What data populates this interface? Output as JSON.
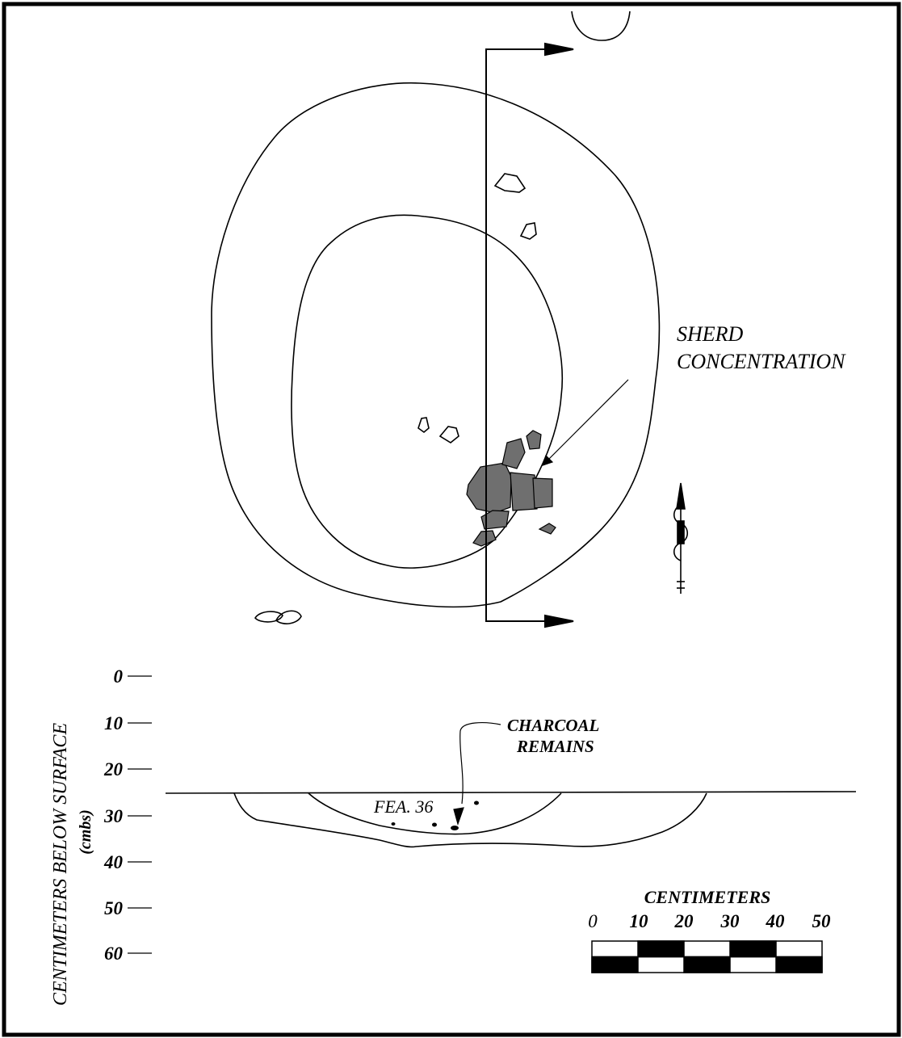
{
  "plan_view": {
    "sherd_label_line1": "SHERD",
    "sherd_label_line2": "CONCENTRATION"
  },
  "profile": {
    "depth_axis_label": "CENTIMETERS BELOW SURFACE",
    "depth_axis_unit": "(cmbs)",
    "depth_ticks": [
      "0",
      "10",
      "20",
      "30",
      "40",
      "50",
      "60"
    ],
    "charcoal_label_line1": "CHARCOAL",
    "charcoal_label_line2": "REMAINS",
    "feature_label": "FEA. 36"
  },
  "scale_bar": {
    "title": "CENTIMETERS",
    "ticks": [
      "0",
      "10",
      "20",
      "30",
      "40",
      "50"
    ]
  },
  "colors": {
    "line": "#000000",
    "sherd_fill": "#6f6f6f",
    "background": "#ffffff"
  },
  "icons": {
    "north_arrow": "north-arrow-icon",
    "section_arrow": "arrow-right-icon"
  }
}
